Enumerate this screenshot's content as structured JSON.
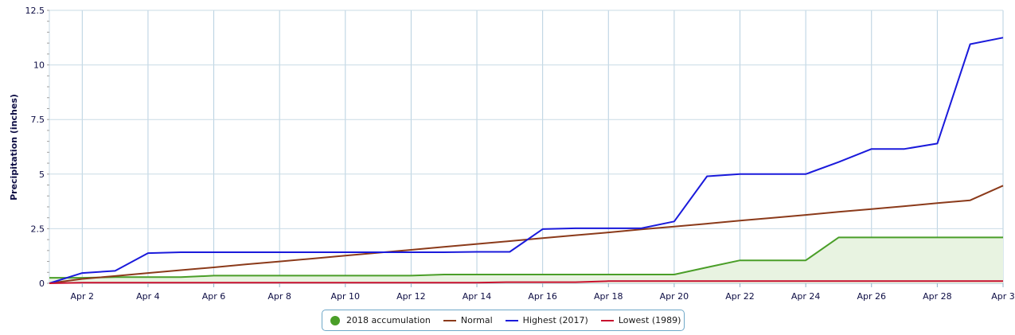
{
  "chart_data": {
    "type": "line",
    "title": "",
    "xlabel": "",
    "ylabel": "Precipitation (inches)",
    "ylim": [
      0,
      12.5
    ],
    "xlim": [
      1,
      30
    ],
    "grid": true,
    "legend_position": "bottom-center",
    "x_tick_labels": [
      "Apr 2",
      "Apr 4",
      "Apr 6",
      "Apr 8",
      "Apr 10",
      "Apr 12",
      "Apr 14",
      "Apr 16",
      "Apr 18",
      "Apr 20",
      "Apr 22",
      "Apr 24",
      "Apr 26",
      "Apr 28",
      "Apr 3"
    ],
    "x_tick_days": [
      2,
      4,
      6,
      8,
      10,
      12,
      14,
      16,
      18,
      20,
      22,
      24,
      26,
      28,
      30
    ],
    "y_ticks": [
      0,
      2.5,
      5,
      7.5,
      10,
      12.5
    ],
    "y_tick_labels": [
      "0",
      "2.5",
      "5",
      "7.5",
      "10",
      "12.5"
    ],
    "x": [
      1,
      2,
      3,
      4,
      5,
      6,
      7,
      8,
      9,
      10,
      11,
      12,
      13,
      14,
      15,
      16,
      17,
      18,
      19,
      20,
      21,
      22,
      23,
      24,
      25,
      26,
      27,
      28,
      29,
      30
    ],
    "series": [
      {
        "name": "2018 accumulation",
        "color": "#4a9e28",
        "fill": "#e8f3e1",
        "marker": "circle",
        "values": [
          0.25,
          0.25,
          0.28,
          0.28,
          0.28,
          0.35,
          0.35,
          0.35,
          0.35,
          0.35,
          0.35,
          0.35,
          0.4,
          0.4,
          0.4,
          0.4,
          0.4,
          0.4,
          0.4,
          0.4,
          0.73,
          1.05,
          1.05,
          1.05,
          2.1,
          2.1,
          2.1,
          2.1,
          2.1,
          2.1
        ]
      },
      {
        "name": "Normal",
        "color": "#8b3a1a",
        "marker": "line",
        "values": [
          0.0,
          0.2,
          0.33,
          0.47,
          0.6,
          0.73,
          0.87,
          1.0,
          1.13,
          1.27,
          1.4,
          1.53,
          1.67,
          1.8,
          1.93,
          2.07,
          2.2,
          2.33,
          2.47,
          2.6,
          2.73,
          2.87,
          3.0,
          3.13,
          3.27,
          3.4,
          3.53,
          3.67,
          3.8,
          4.47
        ]
      },
      {
        "name": "Highest (2017)",
        "color": "#1a1adb",
        "marker": "line",
        "values": [
          0.0,
          0.47,
          0.57,
          1.38,
          1.42,
          1.42,
          1.42,
          1.42,
          1.42,
          1.42,
          1.42,
          1.42,
          1.42,
          1.44,
          1.44,
          2.48,
          2.52,
          2.52,
          2.52,
          2.83,
          4.9,
          5.0,
          5.0,
          5.0,
          5.55,
          6.15,
          6.15,
          6.4,
          10.95,
          11.25
        ]
      },
      {
        "name": "Lowest (1989)",
        "color": "#c8102e",
        "marker": "line",
        "values": [
          0.0,
          0.03,
          0.03,
          0.03,
          0.03,
          0.03,
          0.03,
          0.03,
          0.03,
          0.03,
          0.03,
          0.03,
          0.03,
          0.03,
          0.05,
          0.05,
          0.05,
          0.1,
          0.1,
          0.1,
          0.1,
          0.1,
          0.1,
          0.1,
          0.1,
          0.1,
          0.1,
          0.1,
          0.1,
          0.1
        ]
      }
    ]
  }
}
